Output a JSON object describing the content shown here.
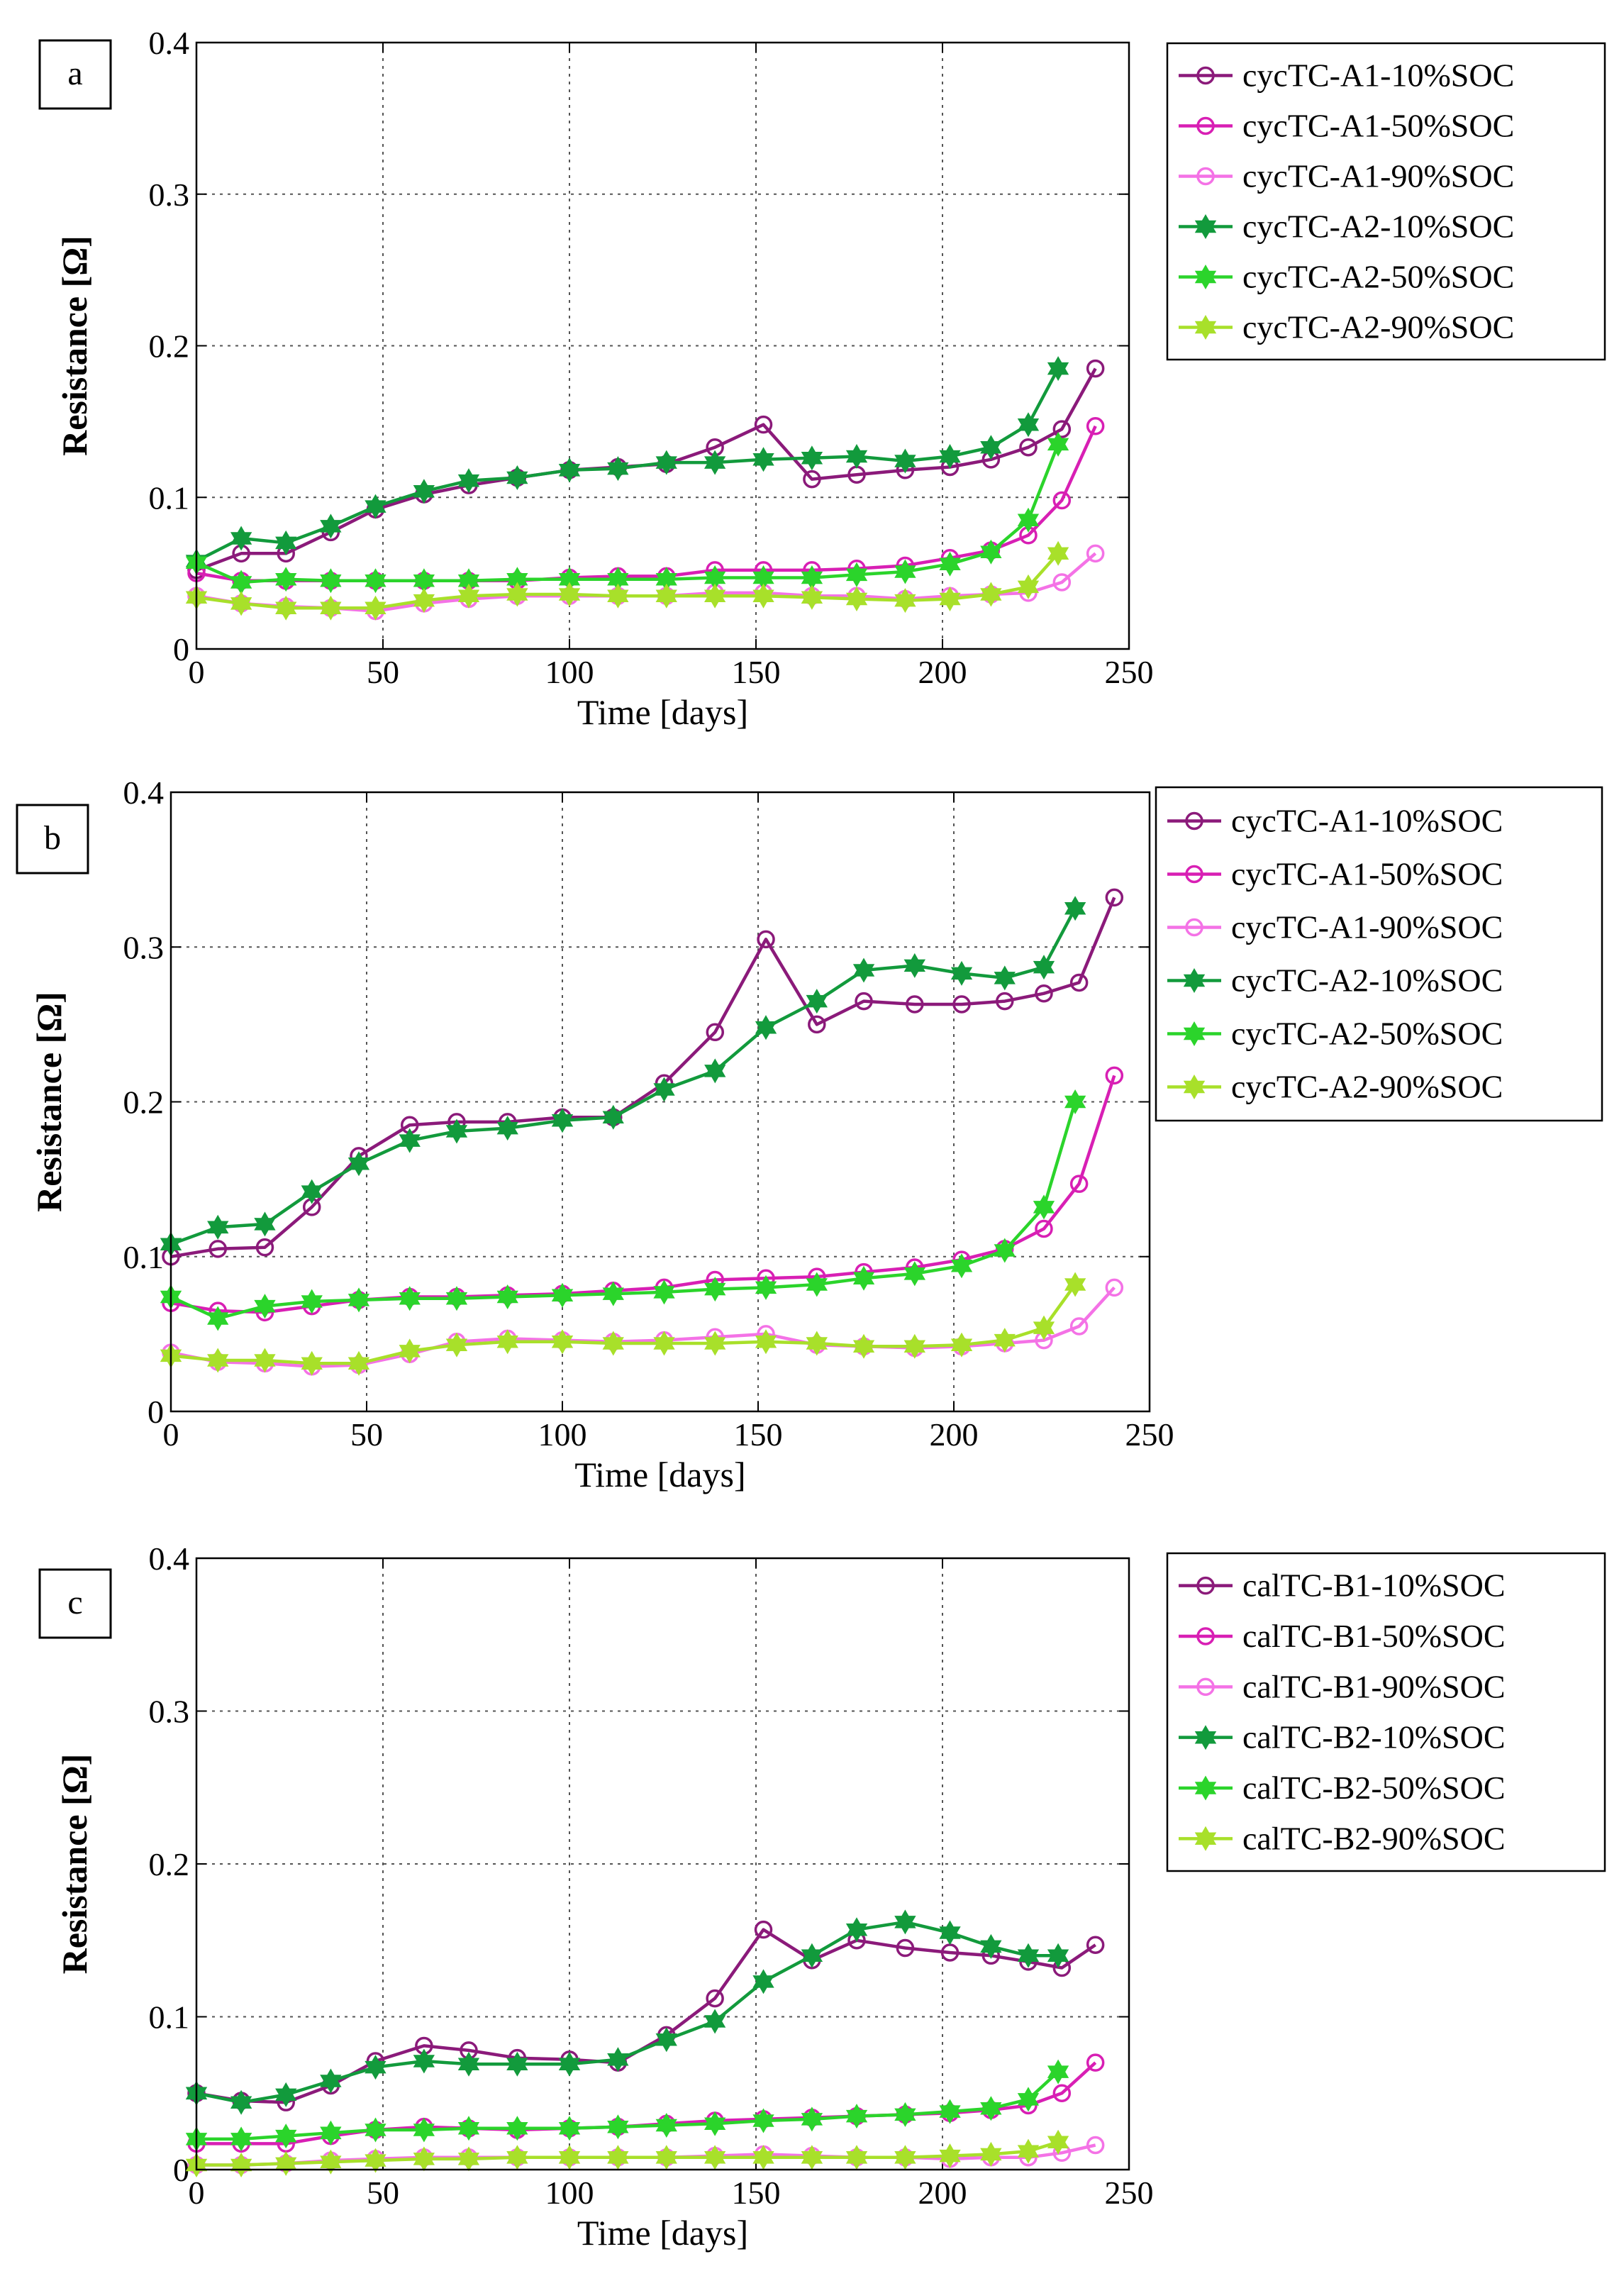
{
  "chart_data": [
    {
      "panel_label": "a",
      "type": "line",
      "xlabel": "Time [days]",
      "ylabel": "Resistance [Ω]",
      "xlim": [
        0,
        250
      ],
      "ylim": [
        0,
        0.4
      ],
      "xticks": [
        0,
        50,
        100,
        150,
        200,
        250
      ],
      "xtick_labels": [
        "0",
        "50",
        "100",
        "150",
        "200",
        "250"
      ],
      "yticks": [
        0,
        0.1,
        0.2,
        0.3,
        0.4
      ],
      "ytick_labels": [
        "0",
        "0.1",
        "0.2",
        "0.3",
        "0.4"
      ],
      "grid": true,
      "legend_position": "outside-right",
      "series": [
        {
          "name": "cycTC-A1-10%SOC",
          "color": "#8b1a7a",
          "marker": "circle",
          "x": [
            0,
            12,
            24,
            36,
            48,
            61,
            73,
            86,
            100,
            113,
            126,
            139,
            152,
            165,
            177,
            190,
            202,
            213,
            223,
            232,
            241
          ],
          "y": [
            0.052,
            0.063,
            0.063,
            0.077,
            0.092,
            0.102,
            0.108,
            0.113,
            0.118,
            0.12,
            0.122,
            0.133,
            0.148,
            0.112,
            0.115,
            0.118,
            0.12,
            0.125,
            0.133,
            0.145,
            0.185
          ]
        },
        {
          "name": "cycTC-A1-50%SOC",
          "color": "#d81fb4",
          "marker": "circle",
          "x": [
            0,
            12,
            24,
            36,
            48,
            61,
            73,
            86,
            100,
            113,
            126,
            139,
            152,
            165,
            177,
            190,
            202,
            213,
            223,
            232,
            241
          ],
          "y": [
            0.05,
            0.045,
            0.045,
            0.045,
            0.045,
            0.045,
            0.045,
            0.045,
            0.047,
            0.048,
            0.048,
            0.052,
            0.052,
            0.052,
            0.053,
            0.055,
            0.06,
            0.065,
            0.075,
            0.098,
            0.147
          ]
        },
        {
          "name": "cycTC-A1-90%SOC",
          "color": "#f472e6",
          "marker": "circle",
          "x": [
            0,
            12,
            24,
            36,
            48,
            61,
            73,
            86,
            100,
            113,
            126,
            139,
            152,
            165,
            177,
            190,
            202,
            213,
            223,
            232,
            241
          ],
          "y": [
            0.035,
            0.03,
            0.028,
            0.027,
            0.025,
            0.03,
            0.033,
            0.035,
            0.035,
            0.035,
            0.035,
            0.037,
            0.037,
            0.035,
            0.035,
            0.033,
            0.035,
            0.036,
            0.037,
            0.044,
            0.063
          ]
        },
        {
          "name": "cycTC-A2-10%SOC",
          "color": "#129a3c",
          "marker": "hexagram",
          "x": [
            0,
            12,
            24,
            36,
            48,
            61,
            73,
            86,
            100,
            113,
            126,
            139,
            152,
            165,
            177,
            190,
            202,
            213,
            223,
            231
          ],
          "y": [
            0.058,
            0.073,
            0.07,
            0.081,
            0.094,
            0.104,
            0.111,
            0.113,
            0.118,
            0.119,
            0.123,
            0.123,
            0.125,
            0.126,
            0.127,
            0.124,
            0.127,
            0.133,
            0.148,
            0.185
          ]
        },
        {
          "name": "cycTC-A2-50%SOC",
          "color": "#2bd42b",
          "marker": "hexagram",
          "x": [
            0,
            12,
            24,
            36,
            48,
            61,
            73,
            86,
            100,
            113,
            126,
            139,
            152,
            165,
            177,
            190,
            202,
            213,
            223,
            231
          ],
          "y": [
            0.057,
            0.044,
            0.046,
            0.045,
            0.045,
            0.045,
            0.045,
            0.046,
            0.046,
            0.046,
            0.046,
            0.047,
            0.047,
            0.047,
            0.049,
            0.051,
            0.056,
            0.064,
            0.085,
            0.135
          ]
        },
        {
          "name": "cycTC-A2-90%SOC",
          "color": "#a8e02a",
          "marker": "hexagram",
          "x": [
            0,
            12,
            24,
            36,
            48,
            61,
            73,
            86,
            100,
            113,
            126,
            139,
            152,
            165,
            177,
            190,
            202,
            213,
            223,
            231
          ],
          "y": [
            0.034,
            0.03,
            0.027,
            0.027,
            0.027,
            0.032,
            0.035,
            0.036,
            0.036,
            0.035,
            0.035,
            0.035,
            0.035,
            0.034,
            0.033,
            0.032,
            0.033,
            0.036,
            0.041,
            0.063
          ]
        }
      ]
    },
    {
      "panel_label": "b",
      "type": "line",
      "xlabel": "Time [days]",
      "ylabel": "Resistance [Ω]",
      "xlim": [
        0,
        250
      ],
      "ylim": [
        0,
        0.4
      ],
      "xticks": [
        0,
        50,
        100,
        150,
        200,
        250
      ],
      "xtick_labels": [
        "0",
        "50",
        "100",
        "150",
        "200",
        "250"
      ],
      "yticks": [
        0,
        0.1,
        0.2,
        0.3,
        0.4
      ],
      "ytick_labels": [
        "0",
        "0.1",
        "0.2",
        "0.3",
        "0.4"
      ],
      "grid": true,
      "legend_position": "outside-right",
      "series": [
        {
          "name": "cycTC-A1-10%SOC",
          "color": "#8b1a7a",
          "marker": "circle",
          "x": [
            0,
            12,
            24,
            36,
            48,
            61,
            73,
            86,
            100,
            113,
            126,
            139,
            152,
            165,
            177,
            190,
            202,
            213,
            223,
            232,
            241
          ],
          "y": [
            0.1,
            0.105,
            0.106,
            0.132,
            0.165,
            0.185,
            0.187,
            0.187,
            0.19,
            0.19,
            0.212,
            0.245,
            0.305,
            0.25,
            0.265,
            0.263,
            0.263,
            0.265,
            0.27,
            0.277,
            0.332
          ]
        },
        {
          "name": "cycTC-A1-50%SOC",
          "color": "#d81fb4",
          "marker": "circle",
          "x": [
            0,
            12,
            24,
            36,
            48,
            61,
            73,
            86,
            100,
            113,
            126,
            139,
            152,
            165,
            177,
            190,
            202,
            213,
            223,
            232,
            241
          ],
          "y": [
            0.07,
            0.065,
            0.064,
            0.068,
            0.072,
            0.074,
            0.074,
            0.075,
            0.076,
            0.078,
            0.08,
            0.085,
            0.086,
            0.087,
            0.09,
            0.093,
            0.098,
            0.105,
            0.118,
            0.147,
            0.217
          ]
        },
        {
          "name": "cycTC-A1-90%SOC",
          "color": "#f472e6",
          "marker": "circle",
          "x": [
            0,
            12,
            24,
            36,
            48,
            61,
            73,
            86,
            100,
            113,
            126,
            139,
            152,
            165,
            177,
            190,
            202,
            213,
            223,
            232,
            241
          ],
          "y": [
            0.038,
            0.032,
            0.031,
            0.029,
            0.03,
            0.037,
            0.045,
            0.047,
            0.046,
            0.045,
            0.046,
            0.048,
            0.05,
            0.043,
            0.042,
            0.041,
            0.042,
            0.044,
            0.046,
            0.055,
            0.08
          ]
        },
        {
          "name": "cycTC-A2-10%SOC",
          "color": "#129a3c",
          "marker": "hexagram",
          "x": [
            0,
            12,
            24,
            36,
            48,
            61,
            73,
            86,
            100,
            113,
            126,
            139,
            152,
            165,
            177,
            190,
            202,
            213,
            223,
            231
          ],
          "y": [
            0.108,
            0.119,
            0.121,
            0.142,
            0.16,
            0.175,
            0.181,
            0.183,
            0.188,
            0.19,
            0.208,
            0.22,
            0.248,
            0.265,
            0.285,
            0.288,
            0.283,
            0.28,
            0.287,
            0.325
          ]
        },
        {
          "name": "cycTC-A2-50%SOC",
          "color": "#2bd42b",
          "marker": "hexagram",
          "x": [
            0,
            12,
            24,
            36,
            48,
            61,
            73,
            86,
            100,
            113,
            126,
            139,
            152,
            165,
            177,
            190,
            202,
            213,
            223,
            231
          ],
          "y": [
            0.074,
            0.06,
            0.068,
            0.071,
            0.072,
            0.073,
            0.073,
            0.074,
            0.075,
            0.076,
            0.077,
            0.079,
            0.08,
            0.082,
            0.086,
            0.089,
            0.094,
            0.104,
            0.132,
            0.2
          ]
        },
        {
          "name": "cycTC-A2-90%SOC",
          "color": "#a8e02a",
          "marker": "hexagram",
          "x": [
            0,
            12,
            24,
            36,
            48,
            61,
            73,
            86,
            100,
            113,
            126,
            139,
            152,
            165,
            177,
            190,
            202,
            213,
            223,
            231
          ],
          "y": [
            0.036,
            0.033,
            0.033,
            0.031,
            0.031,
            0.039,
            0.043,
            0.045,
            0.045,
            0.044,
            0.044,
            0.044,
            0.045,
            0.044,
            0.042,
            0.042,
            0.043,
            0.046,
            0.054,
            0.082
          ]
        }
      ]
    },
    {
      "panel_label": "c",
      "type": "line",
      "xlabel": "Time [days]",
      "ylabel": "Resistance [Ω]",
      "xlim": [
        0,
        250
      ],
      "ylim": [
        0,
        0.4
      ],
      "xticks": [
        0,
        50,
        100,
        150,
        200,
        250
      ],
      "xtick_labels": [
        "0",
        "50",
        "100",
        "150",
        "200",
        "250"
      ],
      "yticks": [
        0,
        0.1,
        0.2,
        0.3,
        0.4
      ],
      "ytick_labels": [
        "0",
        "0.1",
        "0.2",
        "0.3",
        "0.4"
      ],
      "grid": true,
      "legend_position": "outside-right",
      "series": [
        {
          "name": "calTC-B1-10%SOC",
          "color": "#8b1a7a",
          "marker": "circle",
          "x": [
            0,
            12,
            24,
            36,
            48,
            61,
            73,
            86,
            100,
            113,
            126,
            139,
            152,
            165,
            177,
            190,
            202,
            213,
            223,
            232,
            241
          ],
          "y": [
            0.05,
            0.045,
            0.044,
            0.055,
            0.071,
            0.081,
            0.078,
            0.073,
            0.072,
            0.07,
            0.088,
            0.112,
            0.157,
            0.137,
            0.15,
            0.145,
            0.142,
            0.14,
            0.136,
            0.132,
            0.147
          ]
        },
        {
          "name": "calTC-B1-50%SOC",
          "color": "#d81fb4",
          "marker": "circle",
          "x": [
            0,
            12,
            24,
            36,
            48,
            61,
            73,
            86,
            100,
            113,
            126,
            139,
            152,
            165,
            177,
            190,
            202,
            213,
            223,
            232,
            241
          ],
          "y": [
            0.017,
            0.017,
            0.017,
            0.022,
            0.026,
            0.028,
            0.027,
            0.026,
            0.027,
            0.028,
            0.03,
            0.032,
            0.033,
            0.034,
            0.035,
            0.036,
            0.037,
            0.039,
            0.042,
            0.05,
            0.07
          ]
        },
        {
          "name": "calTC-B1-90%SOC",
          "color": "#f472e6",
          "marker": "circle",
          "x": [
            0,
            12,
            24,
            36,
            48,
            61,
            73,
            86,
            100,
            113,
            126,
            139,
            152,
            165,
            177,
            190,
            202,
            213,
            223,
            232,
            241
          ],
          "y": [
            0.003,
            0.003,
            0.004,
            0.006,
            0.007,
            0.008,
            0.008,
            0.008,
            0.008,
            0.008,
            0.008,
            0.009,
            0.01,
            0.009,
            0.008,
            0.008,
            0.007,
            0.008,
            0.008,
            0.011,
            0.016
          ]
        },
        {
          "name": "calTC-B2-10%SOC",
          "color": "#129a3c",
          "marker": "hexagram",
          "x": [
            0,
            12,
            24,
            36,
            48,
            61,
            73,
            86,
            100,
            113,
            126,
            139,
            152,
            165,
            177,
            190,
            202,
            213,
            223,
            231
          ],
          "y": [
            0.05,
            0.044,
            0.049,
            0.058,
            0.067,
            0.071,
            0.069,
            0.069,
            0.069,
            0.072,
            0.085,
            0.097,
            0.123,
            0.14,
            0.157,
            0.162,
            0.155,
            0.146,
            0.14,
            0.14
          ]
        },
        {
          "name": "calTC-B2-50%SOC",
          "color": "#2bd42b",
          "marker": "hexagram",
          "x": [
            0,
            12,
            24,
            36,
            48,
            61,
            73,
            86,
            100,
            113,
            126,
            139,
            152,
            165,
            177,
            190,
            202,
            213,
            223,
            231
          ],
          "y": [
            0.02,
            0.02,
            0.022,
            0.024,
            0.026,
            0.026,
            0.027,
            0.027,
            0.027,
            0.028,
            0.029,
            0.03,
            0.032,
            0.033,
            0.035,
            0.036,
            0.038,
            0.04,
            0.046,
            0.064
          ]
        },
        {
          "name": "calTC-B2-90%SOC",
          "color": "#a8e02a",
          "marker": "hexagram",
          "x": [
            0,
            12,
            24,
            36,
            48,
            61,
            73,
            86,
            100,
            113,
            126,
            139,
            152,
            165,
            177,
            190,
            202,
            213,
            223,
            231
          ],
          "y": [
            0.003,
            0.003,
            0.004,
            0.005,
            0.006,
            0.007,
            0.007,
            0.008,
            0.008,
            0.008,
            0.008,
            0.008,
            0.008,
            0.008,
            0.008,
            0.008,
            0.009,
            0.01,
            0.012,
            0.018
          ]
        }
      ]
    }
  ]
}
